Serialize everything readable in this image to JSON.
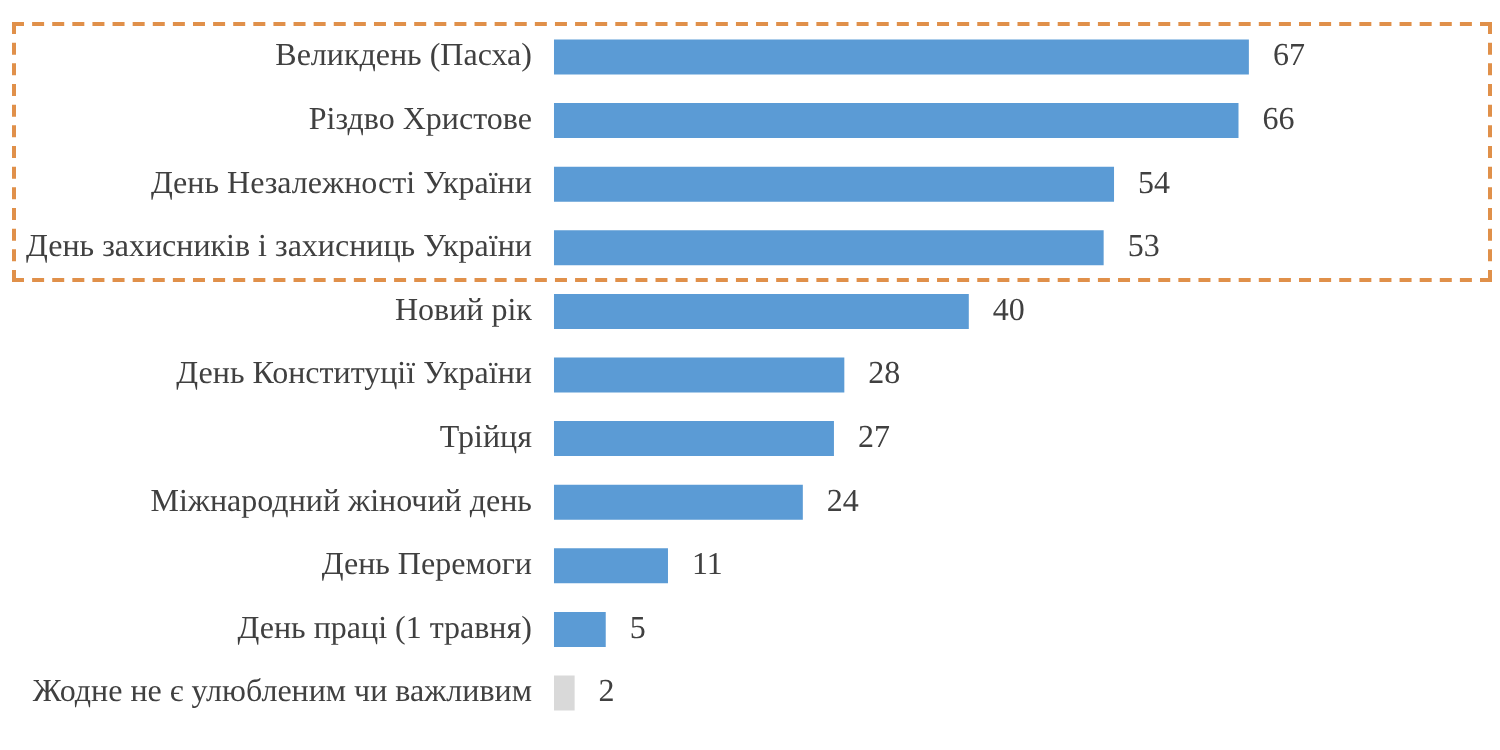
{
  "chart_data": {
    "type": "bar",
    "orientation": "horizontal",
    "categories": [
      "Великдень (Пасха)",
      "Різдво Христове",
      "День Незалежності України",
      "День захисників і захисниць України",
      "Новий рік",
      "День Конституції України",
      "Трійця",
      "Міжнародний жіночий день",
      "День Перемоги",
      "День праці (1 травня)",
      "Жодне не є улюбленим чи важливим"
    ],
    "values": [
      67,
      66,
      54,
      53,
      40,
      28,
      27,
      24,
      11,
      5,
      2
    ],
    "colors": [
      "#5b9bd5",
      "#5b9bd5",
      "#5b9bd5",
      "#5b9bd5",
      "#5b9bd5",
      "#5b9bd5",
      "#5b9bd5",
      "#5b9bd5",
      "#5b9bd5",
      "#5b9bd5",
      "#d9d9d9"
    ],
    "data_labels": true
  }
}
